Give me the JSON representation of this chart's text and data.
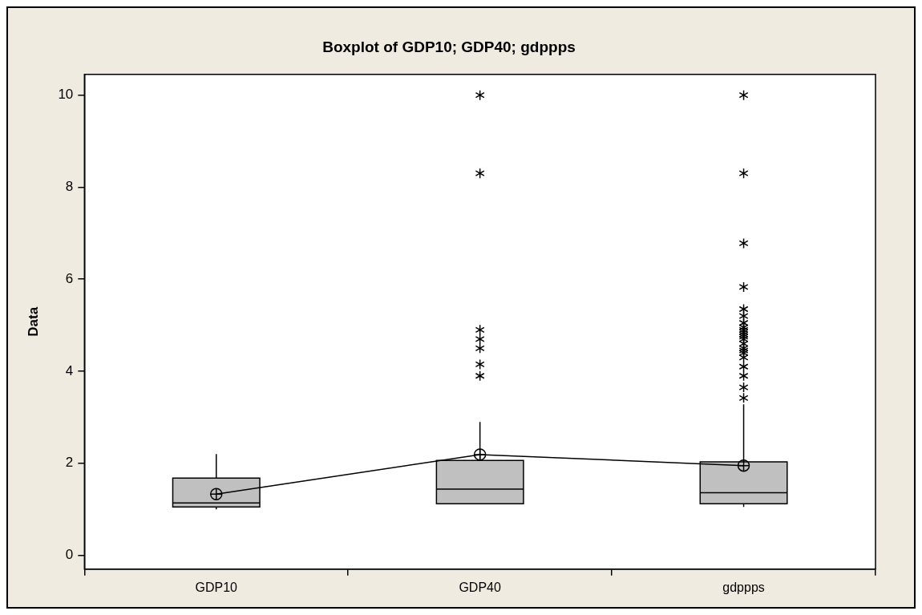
{
  "chart_data": {
    "type": "box",
    "title": "Boxplot of GDP10; GDP40; gdppps",
    "ylabel": "Data",
    "categories": [
      "GDP10",
      "GDP40",
      "gdppps"
    ],
    "series": [
      {
        "color": "#c0c0c0",
        "boxes": [
          {
            "low": 1.0,
            "q1": 1.05,
            "median": 1.14,
            "q3": 1.68,
            "high": 2.2
          },
          {
            "low": 1.12,
            "q1": 1.12,
            "median": 1.44,
            "q3": 2.06,
            "high": 2.9,
            "outliers": [
              10,
              8.3,
              4.9,
              4.7,
              4.5,
              4.15,
              3.9
            ]
          },
          {
            "low": 1.05,
            "q1": 1.12,
            "median": 1.36,
            "q3": 2.03,
            "high": 3.28,
            "outliers": [
              10,
              8.3,
              6.78,
              5.83,
              5.35,
              5.2,
              5.05,
              4.95,
              4.9,
              4.85,
              4.8,
              4.75,
              4.7,
              4.6,
              4.5,
              4.45,
              4.4,
              4.3,
              4.1,
              3.9,
              3.65,
              3.42
            ]
          }
        ]
      },
      {
        "type": "line",
        "color": "#000000",
        "marker": "circle",
        "values": [
          1.33,
          2.19,
          1.95
        ]
      }
    ],
    "ylim": [
      -0.3,
      10.45
    ],
    "yticks": [
      0,
      2,
      4,
      6,
      8,
      10
    ],
    "grid": false,
    "legend": false
  }
}
